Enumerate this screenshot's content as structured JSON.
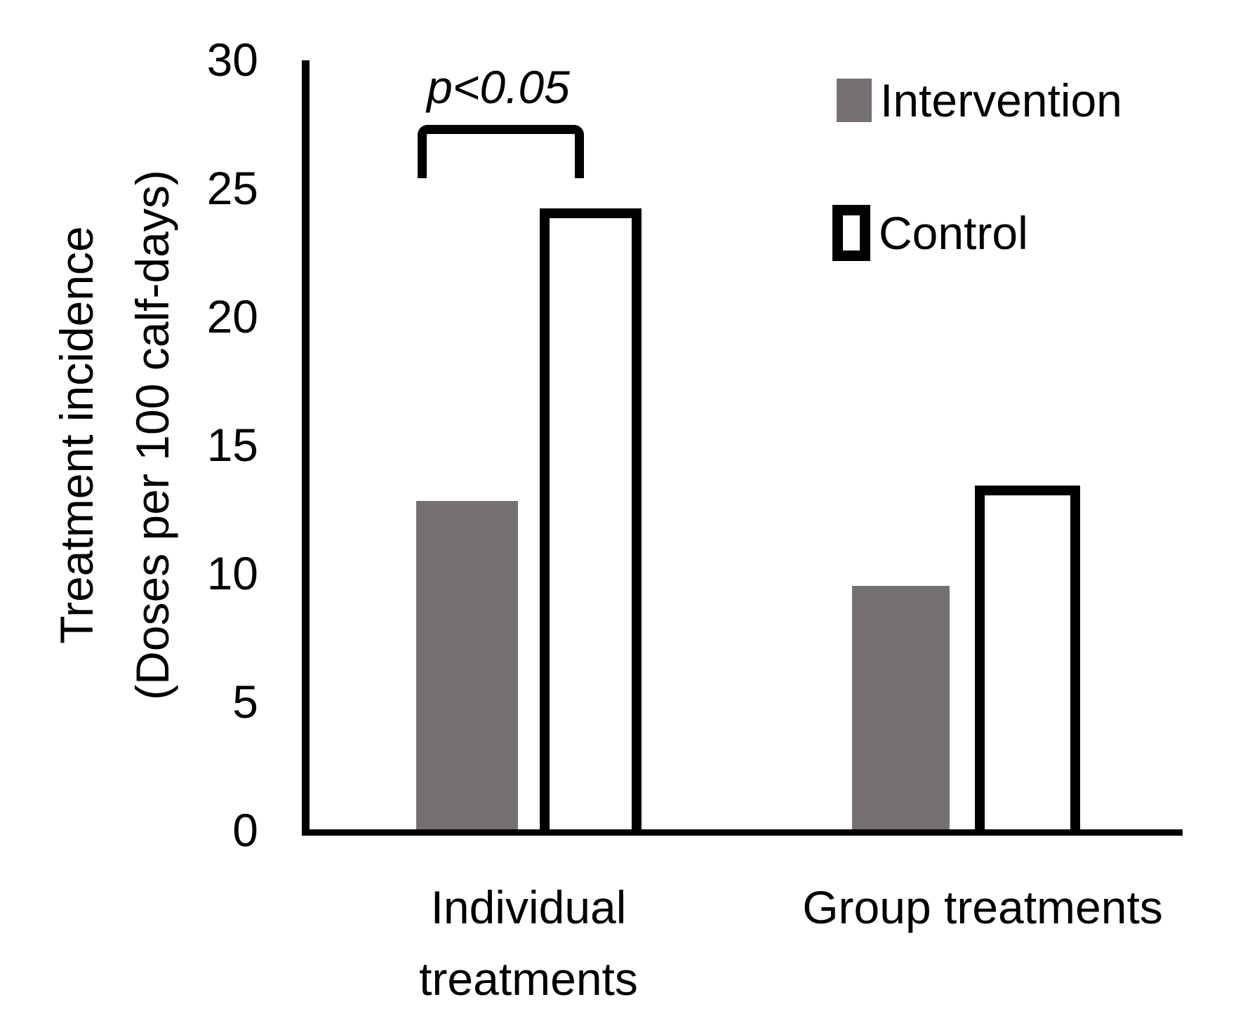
{
  "chart_data": {
    "type": "bar",
    "title": "",
    "categories": [
      "Individual treatments",
      "Group treatments"
    ],
    "series": [
      {
        "name": "Intervention",
        "values": [
          12.8,
          9.5
        ],
        "fill": "#767070",
        "border": null
      },
      {
        "name": "Control",
        "values": [
          24.2,
          13.4
        ],
        "fill": "#ffffff",
        "border": "#000000"
      }
    ],
    "ylabel_line1": "Treatment incidence",
    "ylabel_line2": "(Doses per 100 calf-days)",
    "yticks": [
      30,
      25,
      20,
      15,
      10,
      5,
      0
    ],
    "ylim": [
      0,
      30
    ],
    "xlabel": "",
    "grid": false,
    "legend_position": "top-right",
    "annotation": {
      "text": "p<0.05",
      "applies_to": "Individual treatments pair"
    }
  },
  "colors": {
    "intervention_fill": "#767070",
    "control_border": "#000000",
    "axis": "#000000",
    "background": "#ffffff"
  }
}
